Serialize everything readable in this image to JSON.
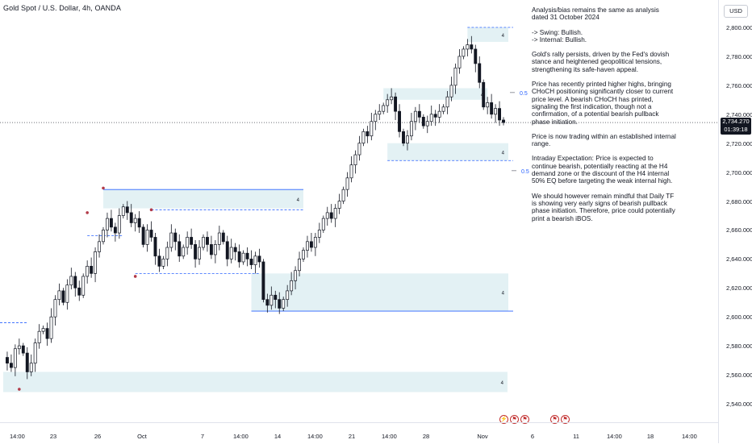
{
  "header": {
    "symbol_title": "Gold Spot / U.S. Dollar, 4h, OANDA"
  },
  "price_axis": {
    "currency": "USD",
    "ticks": [
      "2,800.000",
      "2,780.000",
      "2,760.000",
      "2,740.000",
      "2,720.000",
      "2,700.000",
      "2,680.000",
      "2,660.000",
      "2,640.000",
      "2,620.000",
      "2,600.000",
      "2,580.000",
      "2,560.000",
      "2,540.000"
    ],
    "last_price": "2,734.270",
    "countdown": "01:39:18"
  },
  "time_axis": {
    "ticks": [
      "14:00",
      "23",
      "26",
      "Oct",
      "7",
      "14:00",
      "14",
      "14:00",
      "21",
      "14:00",
      "28",
      "Nov",
      "6",
      "11",
      "14:00",
      "18",
      "14:00"
    ]
  },
  "annotation": {
    "paragraphs": [
      "Analysis/bias remains the same as analysis dated 31 October 2024",
      "-> Swing:  Bullish.\n-> Internal:  Bullish.",
      "Gold's rally persists, driven by the Fed's dovish stance and heightened geopolitical tensions, strengthening its safe-haven appeal.",
      "Price has recently printed higher highs, bringing CHoCH positioning significantly closer to current price level. A bearish CHoCH has printed, signaling the first indication, though not a confirmation, of a potential bearish pullback phase initiation.",
      "Price is now trading within an established internal range.",
      "Intraday Expectation: Price is expected to continue bearish, potentially reacting at the H4 demand zone or the discount of the H4 internal 50% EQ before targeting the weak internal high.",
      "We should however remain mindful that Daily TF is showing very early signs of bearish pullback phase initiation. Therefore, price could potentially print a bearish iBOS."
    ]
  },
  "zone_labels": {
    "four": "4",
    "eq_label": "0.5"
  },
  "colors": {
    "bull": "#131722",
    "bear": "#131722",
    "zone_fill": "#e3f1f4",
    "zone_line": "#2962ff",
    "marker": "#b23a48"
  },
  "chart_data": {
    "type": "candlestick",
    "symbol": "Gold Spot / U.S. Dollar",
    "interval": "4h",
    "ylim": [
      2535,
      2810
    ],
    "y_ticks": [
      2540,
      2560,
      2580,
      2600,
      2620,
      2640,
      2660,
      2680,
      2700,
      2720,
      2740,
      2760,
      2780,
      2800
    ],
    "last_price": 2734.27,
    "close_path": [
      [
        0,
        2572
      ],
      [
        1,
        2568
      ],
      [
        2,
        2565
      ],
      [
        3,
        2578
      ],
      [
        4,
        2580
      ],
      [
        5,
        2575
      ],
      [
        6,
        2562
      ],
      [
        7,
        2568
      ],
      [
        8,
        2582
      ],
      [
        9,
        2590
      ],
      [
        10,
        2592
      ],
      [
        11,
        2585
      ],
      [
        12,
        2600
      ],
      [
        13,
        2612
      ],
      [
        14,
        2618
      ],
      [
        15,
        2610
      ],
      [
        16,
        2622
      ],
      [
        17,
        2628
      ],
      [
        18,
        2620
      ],
      [
        19,
        2615
      ],
      [
        20,
        2628
      ],
      [
        21,
        2635
      ],
      [
        22,
        2630
      ],
      [
        23,
        2645
      ],
      [
        24,
        2652
      ],
      [
        25,
        2660
      ],
      [
        26,
        2668
      ],
      [
        27,
        2662
      ],
      [
        28,
        2658
      ],
      [
        29,
        2670
      ],
      [
        30,
        2676
      ],
      [
        31,
        2672
      ],
      [
        32,
        2665
      ],
      [
        33,
        2668
      ],
      [
        34,
        2662
      ],
      [
        35,
        2650
      ],
      [
        36,
        2660
      ],
      [
        37,
        2655
      ],
      [
        38,
        2642
      ],
      [
        39,
        2635
      ],
      [
        40,
        2640
      ],
      [
        41,
        2648
      ],
      [
        42,
        2658
      ],
      [
        43,
        2652
      ],
      [
        44,
        2642
      ],
      [
        45,
        2648
      ],
      [
        46,
        2655
      ],
      [
        47,
        2650
      ],
      [
        48,
        2640
      ],
      [
        49,
        2648
      ],
      [
        50,
        2655
      ],
      [
        51,
        2650
      ],
      [
        52,
        2643
      ],
      [
        53,
        2650
      ],
      [
        54,
        2658
      ],
      [
        55,
        2652
      ],
      [
        56,
        2640
      ],
      [
        57,
        2648
      ],
      [
        58,
        2645
      ],
      [
        59,
        2638
      ],
      [
        60,
        2644
      ],
      [
        61,
        2640
      ],
      [
        62,
        2636
      ],
      [
        63,
        2642
      ],
      [
        64,
        2638
      ],
      [
        65,
        2612
      ],
      [
        66,
        2608
      ],
      [
        67,
        2615
      ],
      [
        68,
        2612
      ],
      [
        69,
        2606
      ],
      [
        70,
        2612
      ],
      [
        71,
        2618
      ],
      [
        72,
        2625
      ],
      [
        73,
        2632
      ],
      [
        74,
        2640
      ],
      [
        75,
        2646
      ],
      [
        76,
        2652
      ],
      [
        77,
        2648
      ],
      [
        78,
        2655
      ],
      [
        79,
        2660
      ],
      [
        80,
        2668
      ],
      [
        81,
        2672
      ],
      [
        82,
        2668
      ],
      [
        83,
        2675
      ],
      [
        84,
        2680
      ],
      [
        85,
        2688
      ],
      [
        86,
        2696
      ],
      [
        87,
        2705
      ],
      [
        88,
        2712
      ],
      [
        89,
        2720
      ],
      [
        90,
        2728
      ],
      [
        91,
        2725
      ],
      [
        92,
        2735
      ],
      [
        93,
        2740
      ],
      [
        94,
        2742
      ],
      [
        95,
        2746
      ],
      [
        96,
        2750
      ],
      [
        97,
        2752
      ],
      [
        98,
        2742
      ],
      [
        99,
        2728
      ],
      [
        100,
        2720
      ],
      [
        101,
        2725
      ],
      [
        102,
        2735
      ],
      [
        103,
        2742
      ],
      [
        104,
        2738
      ],
      [
        105,
        2732
      ],
      [
        106,
        2735
      ],
      [
        107,
        2740
      ],
      [
        108,
        2738
      ],
      [
        109,
        2742
      ],
      [
        110,
        2745
      ],
      [
        111,
        2752
      ],
      [
        112,
        2760
      ],
      [
        113,
        2772
      ],
      [
        114,
        2780
      ],
      [
        115,
        2785
      ],
      [
        116,
        2788
      ],
      [
        117,
        2785
      ],
      [
        118,
        2775
      ],
      [
        119,
        2762
      ],
      [
        120,
        2745
      ],
      [
        121,
        2748
      ],
      [
        122,
        2740
      ],
      [
        123,
        2744
      ],
      [
        124,
        2736
      ],
      [
        125,
        2734.27
      ]
    ],
    "zones": [
      {
        "kind": "demand",
        "low": 2548,
        "high": 2562
      },
      {
        "kind": "demand",
        "low": 2604,
        "high": 2630
      },
      {
        "kind": "supply",
        "low": 2675,
        "high": 2688
      },
      {
        "kind": "demand",
        "low": 2708,
        "high": 2720
      },
      {
        "kind": "supply",
        "low": 2750,
        "high": 2758
      },
      {
        "kind": "supply",
        "low": 2790,
        "high": 2800
      }
    ],
    "eq_levels": [
      2755,
      2701
    ]
  }
}
